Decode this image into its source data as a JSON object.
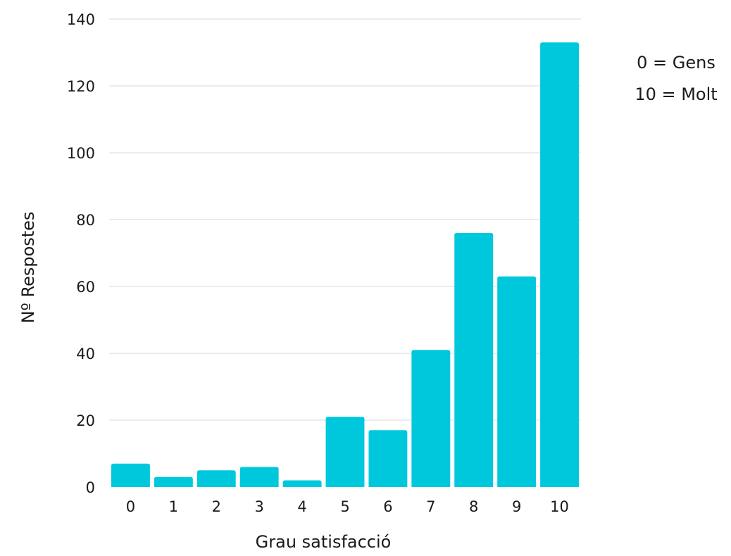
{
  "chart_data": {
    "type": "bar",
    "categories": [
      "0",
      "1",
      "2",
      "3",
      "4",
      "5",
      "6",
      "7",
      "8",
      "9",
      "10"
    ],
    "values": [
      7,
      3,
      5,
      6,
      2,
      21,
      17,
      41,
      76,
      63,
      133
    ],
    "xlabel": "Grau satisfacció",
    "ylabel": "Nº Respostes",
    "ylim": [
      0,
      140
    ],
    "yticks": [
      0,
      20,
      40,
      60,
      80,
      100,
      120,
      140
    ],
    "grid": true,
    "bar_color": "#00c8dc",
    "annotations": [
      "0 = Gens",
      "10 = Molt"
    ]
  }
}
